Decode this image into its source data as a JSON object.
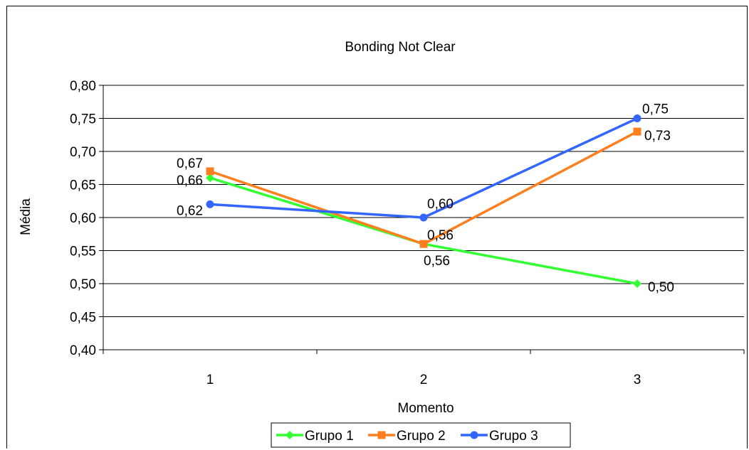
{
  "chart_data": {
    "type": "line",
    "title": "Bonding Not Clear",
    "xlabel": "Momento",
    "ylabel": "Média",
    "categories": [
      "1",
      "2",
      "3"
    ],
    "ylim": [
      0.4,
      0.8
    ],
    "yticks": [
      "0,40",
      "0,45",
      "0,50",
      "0,55",
      "0,60",
      "0,65",
      "0,70",
      "0,75",
      "0,80"
    ],
    "grid": true,
    "legend_position": "bottom",
    "series": [
      {
        "name": "Grupo 1",
        "values": [
          0.66,
          0.56,
          0.5
        ],
        "labels": [
          "0,66",
          "0,56",
          "0,50"
        ],
        "color": "#33ff33",
        "marker": "diamond"
      },
      {
        "name": "Grupo 2",
        "values": [
          0.67,
          0.56,
          0.73
        ],
        "labels": [
          "0,67",
          "0,56",
          "0,73"
        ],
        "color": "#ff7f1f",
        "marker": "square"
      },
      {
        "name": "Grupo 3",
        "values": [
          0.62,
          0.6,
          0.75
        ],
        "labels": [
          "0,62",
          "0,60",
          "0,75"
        ],
        "color": "#3366ff",
        "marker": "circle"
      }
    ]
  }
}
